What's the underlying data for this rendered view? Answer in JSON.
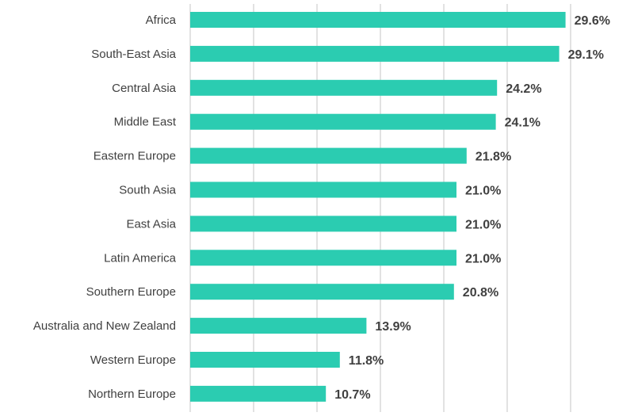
{
  "chart_data": {
    "type": "bar",
    "orientation": "horizontal",
    "categories": [
      "Africa",
      "South-East Asia",
      "Central Asia",
      "Middle East",
      "Eastern Europe",
      "South Asia",
      "East Asia",
      "Latin America",
      "Southern Europe",
      "Australia and New Zealand",
      "Western Europe",
      "Northern Europe"
    ],
    "values": [
      29.6,
      29.1,
      24.2,
      24.1,
      21.8,
      21.0,
      21.0,
      21.0,
      20.8,
      13.9,
      11.8,
      10.7
    ],
    "value_labels": [
      "29.6%",
      "29.1%",
      "24.2%",
      "24.1%",
      "21.8%",
      "21.0%",
      "21.0%",
      "21.0%",
      "20.8%",
      "13.9%",
      "11.8%",
      "10.7%"
    ],
    "title": "",
    "xlabel": "",
    "ylabel": "",
    "xlim": [
      0,
      35
    ],
    "grid_step": 5,
    "grid": true,
    "bar_color": "#2bccb1"
  }
}
